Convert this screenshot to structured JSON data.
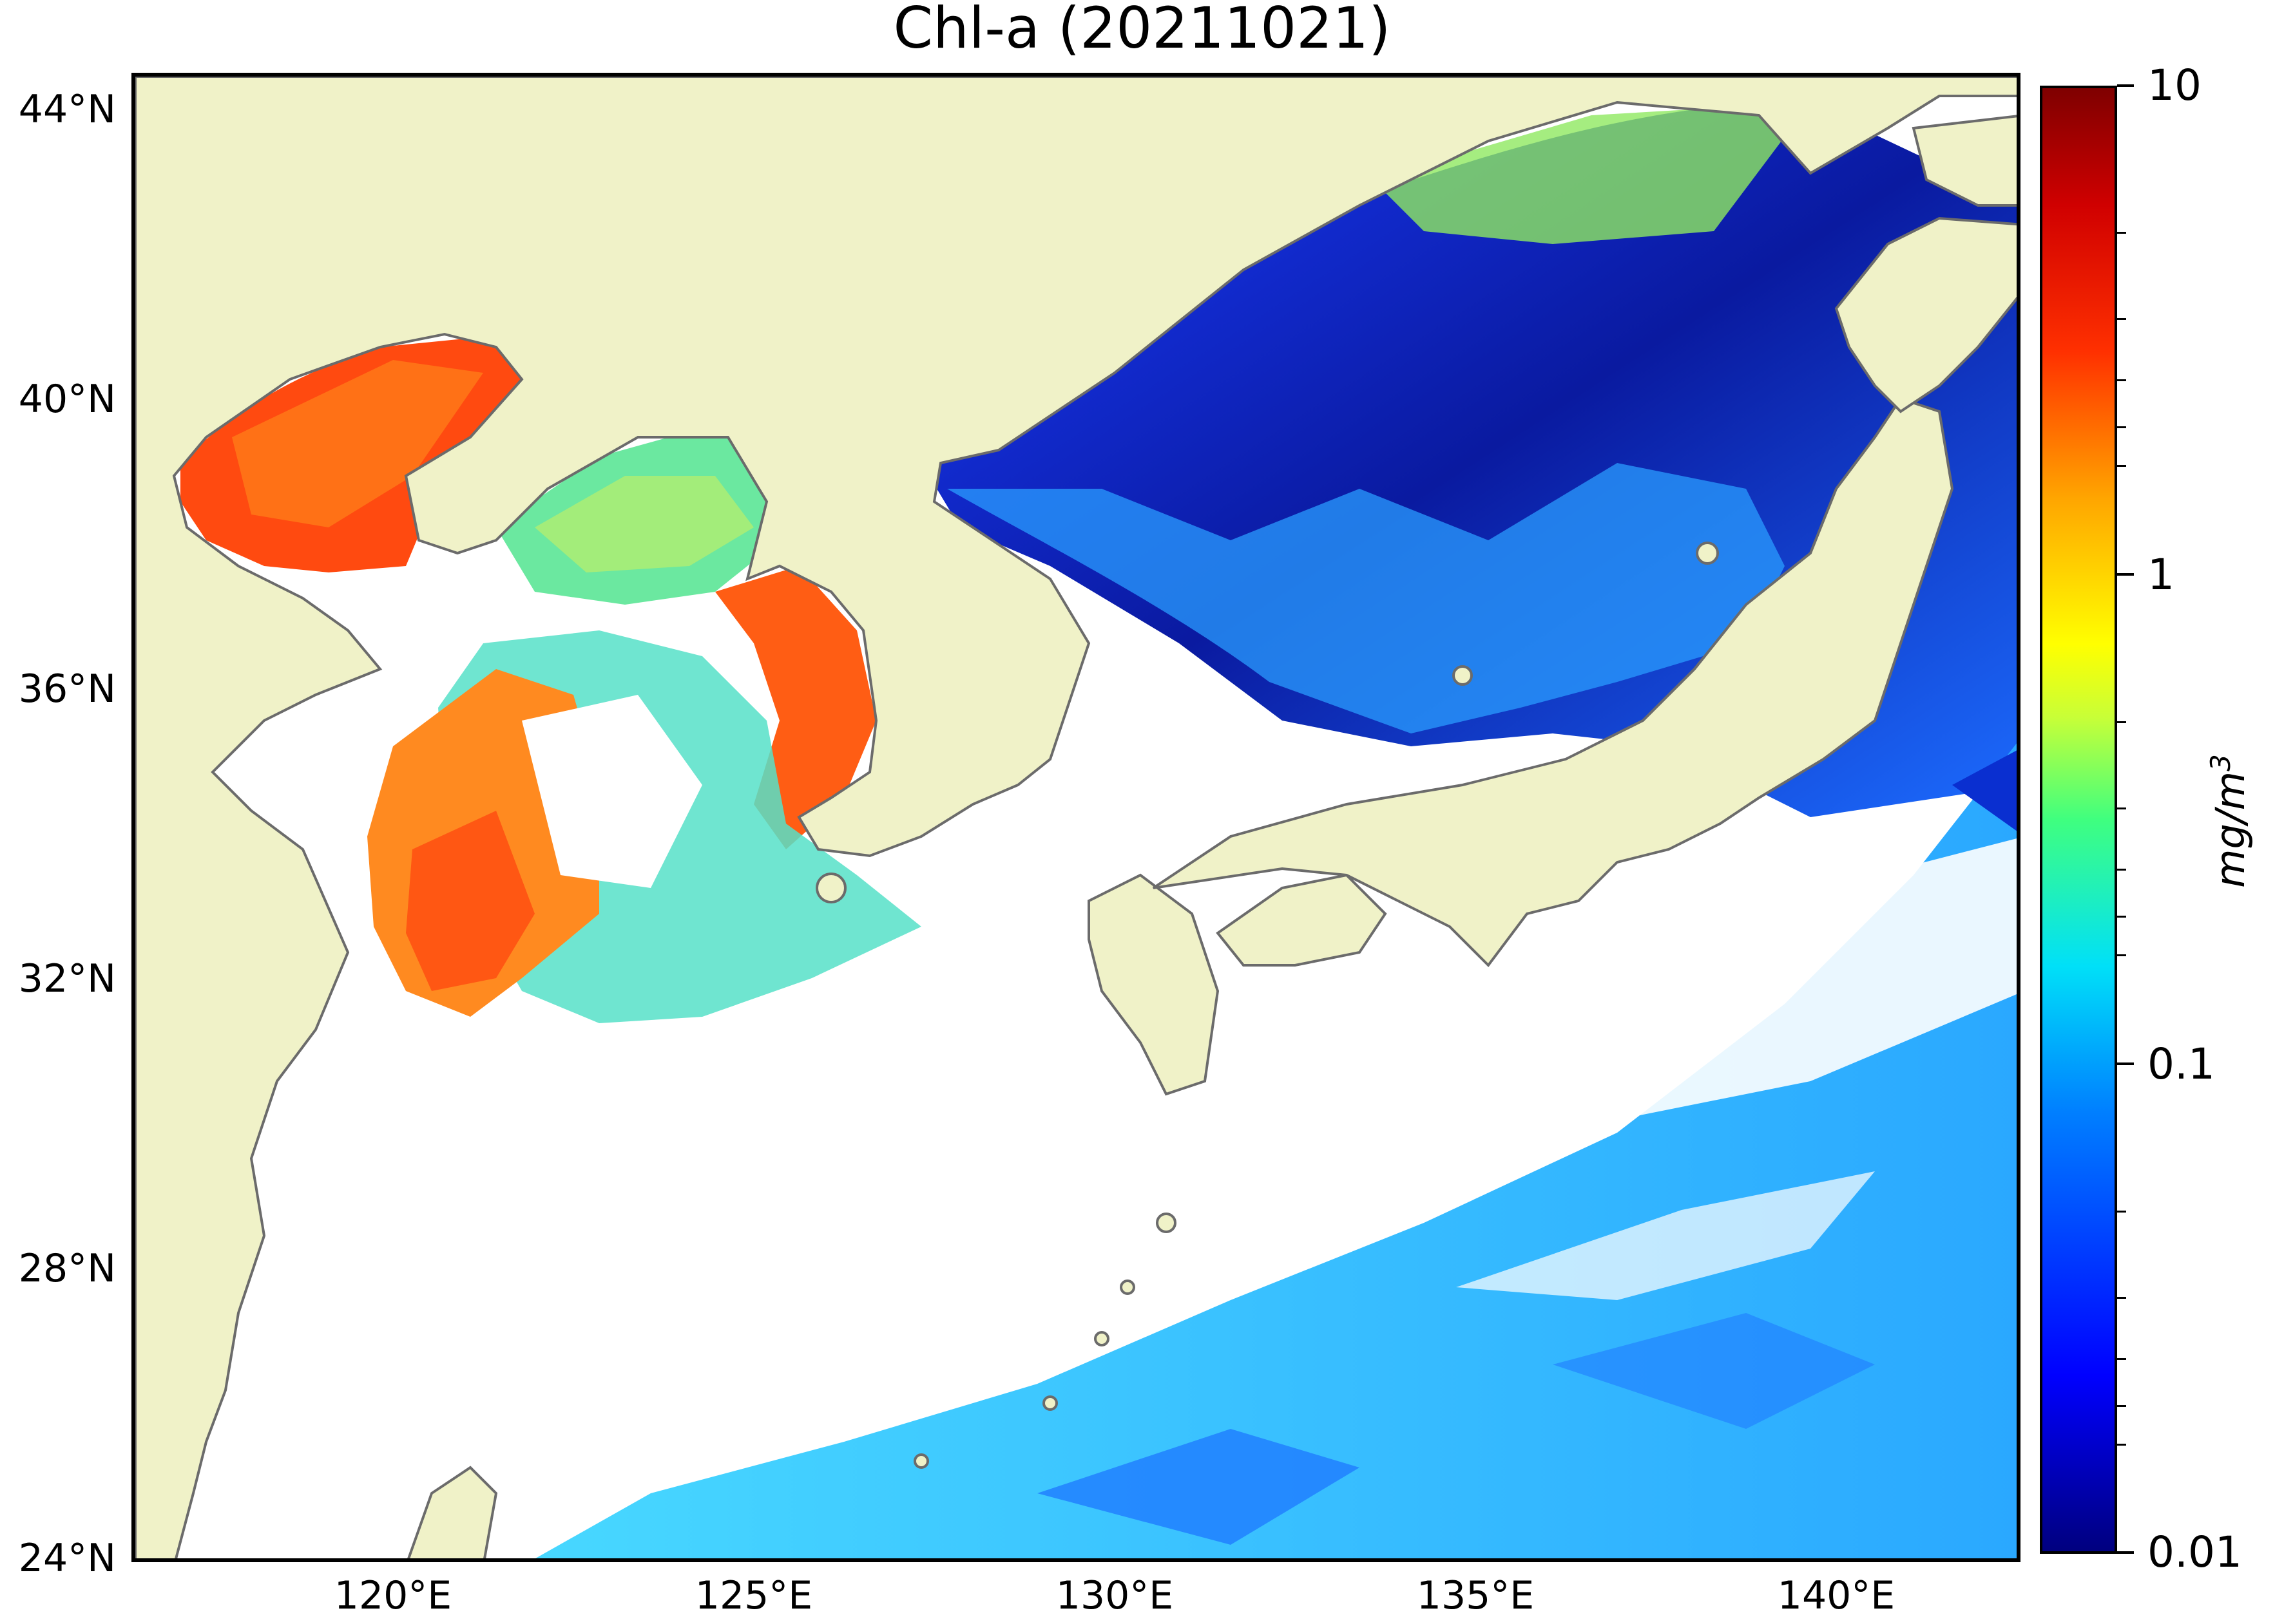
{
  "title": "Chl-a (20211021)",
  "map": {
    "land_color": "#f0f2c8",
    "coast_color": "#6b6b6b",
    "lat_ticks": [
      "44°N",
      "40°N",
      "36°N",
      "32°N",
      "28°N",
      "24°N"
    ],
    "lon_ticks": [
      "120°E",
      "125°E",
      "130°E",
      "135°E",
      "140°E"
    ]
  },
  "colorbar": {
    "labels": [
      "10",
      "1",
      "0.1",
      "0.01"
    ],
    "unit_base": "mg/m",
    "unit_exp": "3",
    "colormap": "jet",
    "scale": "log",
    "range": [
      0.01,
      10
    ]
  }
}
